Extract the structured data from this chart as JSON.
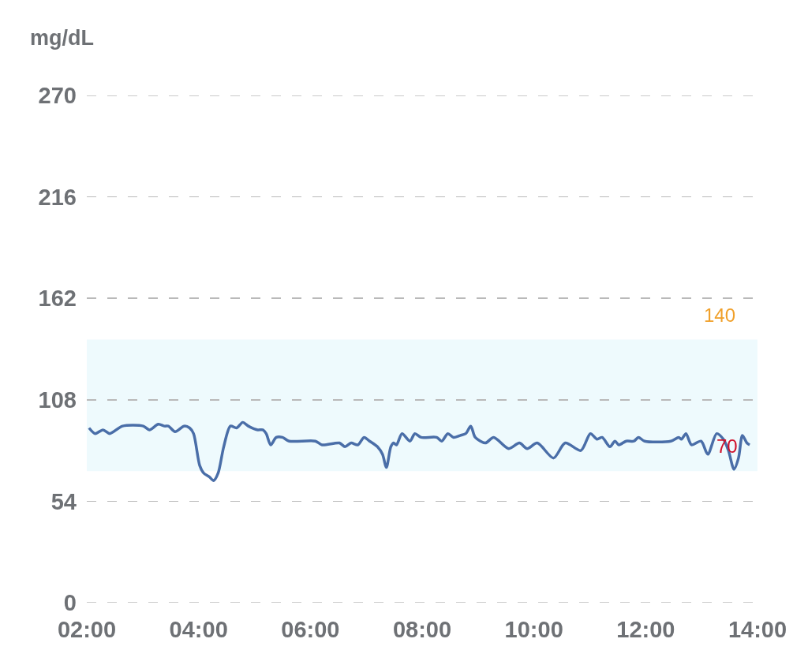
{
  "chart_data": {
    "type": "line",
    "ylabel": "mg/dL",
    "x": [
      2.04,
      2.15,
      2.29,
      2.41,
      2.64,
      3.01,
      3.12,
      3.28,
      3.39,
      3.46,
      3.58,
      3.74,
      3.84,
      3.91,
      4.02,
      4.09,
      4.19,
      4.27,
      4.35,
      4.45,
      4.57,
      4.68,
      4.79,
      4.89,
      4.96,
      5.06,
      5.15,
      5.21,
      5.29,
      5.39,
      5.5,
      5.62,
      6.09,
      6.21,
      6.52,
      6.62,
      6.73,
      6.85,
      6.96,
      7.06,
      7.2,
      7.29,
      7.36,
      7.44,
      7.49,
      7.54,
      7.64,
      7.78,
      7.87,
      7.98,
      8.26,
      8.35,
      8.46,
      8.56,
      8.68,
      8.78,
      8.87,
      8.95,
      9.13,
      9.28,
      9.55,
      9.74,
      9.88,
      10.06,
      10.35,
      10.56,
      10.84,
      11.01,
      11.13,
      11.22,
      11.36,
      11.45,
      11.52,
      11.65,
      11.79,
      11.87,
      11.98,
      12.45,
      12.59,
      12.64,
      12.72,
      12.82,
      12.99,
      13.11,
      13.27,
      13.39,
      13.48,
      13.58,
      13.66,
      13.73,
      13.81,
      13.86
    ],
    "series": [
      {
        "color": "#4a6ea8",
        "values": [
          93,
          90,
          92,
          90,
          94,
          94,
          92,
          95,
          94,
          94,
          91,
          94,
          93,
          90,
          73,
          69,
          67,
          65,
          69,
          83,
          94,
          93,
          96,
          94,
          93,
          92,
          92,
          90,
          84,
          88,
          88,
          86,
          86,
          84,
          85,
          83,
          85,
          84,
          88,
          86,
          83,
          79,
          72,
          83,
          85,
          84,
          90,
          86,
          90,
          88,
          88,
          86,
          90,
          88,
          89,
          90,
          94,
          88,
          85,
          88,
          82,
          85,
          82,
          85,
          77,
          85,
          81,
          90,
          87,
          88,
          83,
          86,
          84,
          86,
          86,
          88,
          86,
          86,
          88,
          87,
          90,
          84,
          86,
          79,
          90,
          87,
          81,
          71,
          77,
          89,
          85,
          84
        ]
      }
    ],
    "xlim": [
      2,
      14
    ],
    "xticks": [
      {
        "value": 2,
        "label": "02:00"
      },
      {
        "value": 4,
        "label": "04:00"
      },
      {
        "value": 6,
        "label": "06:00"
      },
      {
        "value": 8,
        "label": "08:00"
      },
      {
        "value": 10,
        "label": "10:00"
      },
      {
        "value": 12,
        "label": "12:00"
      },
      {
        "value": 14,
        "label": "14:00"
      }
    ],
    "ylim": [
      0,
      270
    ],
    "yticks": [
      0,
      54,
      108,
      162,
      216,
      270
    ],
    "grid": "y",
    "bands": [
      {
        "axis": "y",
        "from": 70,
        "to": 140,
        "color": "#eefafd"
      }
    ],
    "annotations": [
      {
        "text": "140",
        "x": 13.32,
        "y": 140
      },
      {
        "text": "70",
        "x": 13.45,
        "y": 70
      }
    ]
  }
}
